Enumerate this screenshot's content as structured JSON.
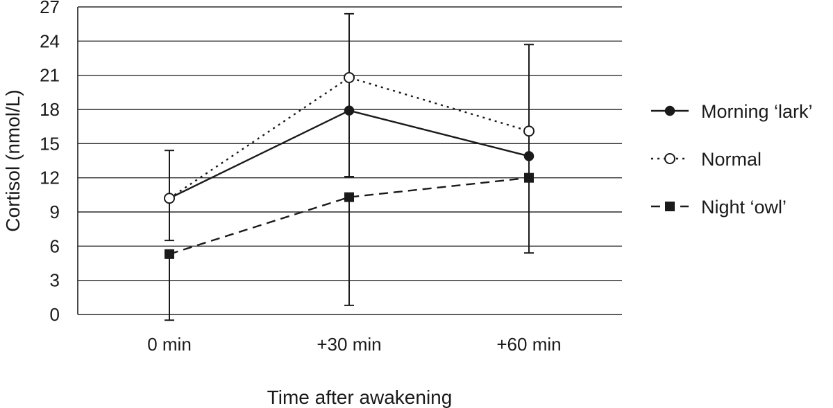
{
  "chart_data": {
    "type": "line",
    "title": "",
    "xlabel": "Time after awakening",
    "ylabel": "Cortisol (nmol/L)",
    "categories": [
      "0 min",
      "+30 min",
      "+60 min"
    ],
    "ylim": [
      0,
      27
    ],
    "yticks": [
      0,
      3,
      6,
      9,
      12,
      15,
      18,
      21,
      24,
      27
    ],
    "grid": "horizontal",
    "legend_position": "right",
    "series": [
      {
        "name": "Morning ‘lark’",
        "marker": "filled-circle",
        "line_style": "solid",
        "values": [
          10.2,
          17.9,
          13.9
        ],
        "error_low": [
          6.5,
          12.1,
          null
        ],
        "error_high": [
          14.4,
          26.4,
          null
        ]
      },
      {
        "name": "Normal",
        "marker": "open-circle",
        "line_style": "dotted",
        "values": [
          10.2,
          20.8,
          16.1
        ],
        "error_low": [
          null,
          null,
          5.4
        ],
        "error_high": [
          null,
          null,
          23.7
        ]
      },
      {
        "name": "Night ‘owl’",
        "marker": "filled-square",
        "line_style": "dashed",
        "values": [
          5.3,
          10.3,
          12.0
        ],
        "error_low": [
          -0.5,
          0.8,
          null
        ],
        "error_high": [
          null,
          null,
          null
        ]
      }
    ],
    "colors": {
      "line": "#1a1a1a",
      "grid": "#2a2a2a",
      "background": "#ffffff"
    }
  }
}
